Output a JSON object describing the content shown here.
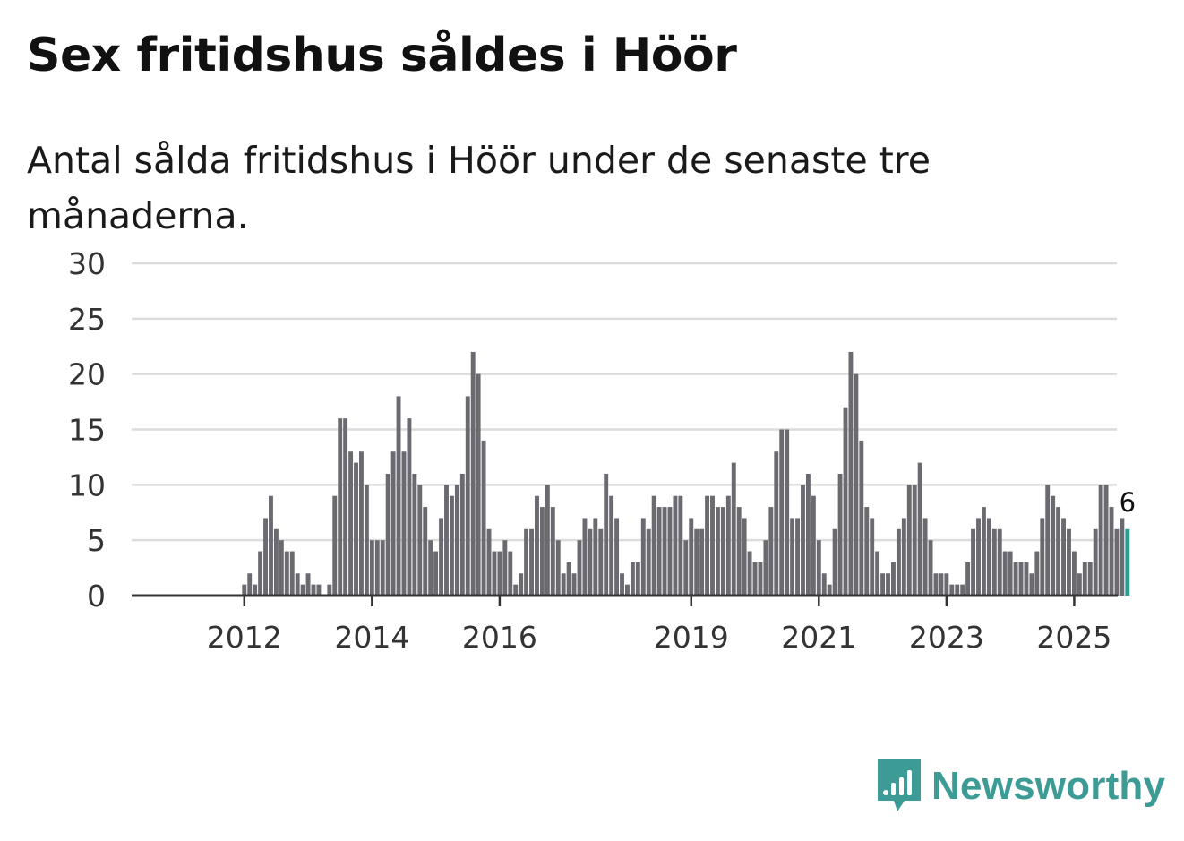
{
  "title": "Sex fritidshus såldes i Höör",
  "subtitle": "Antal sålda fritidshus i Höör under de senaste tre månaderna.",
  "brand": {
    "name": "Newsworthy",
    "color": "#3d9b95",
    "icon": "newsworthy-logo-icon"
  },
  "chart_data": {
    "type": "bar",
    "title": "Sex fritidshus såldes i Höör",
    "subtitle": "Antal sålda fritidshus i Höör under de senaste tre månaderna.",
    "xlabel": "",
    "ylabel": "",
    "ylim": [
      0,
      30
    ],
    "yticks": [
      0,
      5,
      10,
      15,
      20,
      25,
      30
    ],
    "grid": true,
    "legend": "none",
    "x_start": "2011-01",
    "frequency": "monthly",
    "xtick_labels": [
      {
        "label": "2012",
        "index": 12
      },
      {
        "label": "2014",
        "index": 36
      },
      {
        "label": "2016",
        "index": 60
      },
      {
        "label": "2019",
        "index": 96
      },
      {
        "label": "2021",
        "index": 120
      },
      {
        "label": "2023",
        "index": 144
      },
      {
        "label": "2025",
        "index": 168
      }
    ],
    "bar_color": "#6b6a70",
    "highlight_color": "#2a9d92",
    "highlight_label": "6",
    "values": [
      0,
      0,
      0,
      0,
      0,
      0,
      0,
      0,
      0,
      0,
      0,
      0,
      1,
      2,
      1,
      4,
      7,
      9,
      6,
      5,
      4,
      4,
      2,
      1,
      2,
      1,
      1,
      0,
      1,
      9,
      16,
      16,
      13,
      12,
      13,
      10,
      5,
      5,
      5,
      11,
      13,
      18,
      13,
      16,
      11,
      10,
      8,
      5,
      4,
      7,
      10,
      9,
      10,
      11,
      18,
      22,
      20,
      14,
      6,
      4,
      4,
      5,
      4,
      1,
      2,
      6,
      6,
      9,
      8,
      10,
      8,
      5,
      2,
      3,
      2,
      5,
      7,
      6,
      7,
      6,
      11,
      9,
      7,
      2,
      1,
      3,
      3,
      7,
      6,
      9,
      8,
      8,
      8,
      9,
      9,
      5,
      7,
      6,
      6,
      9,
      9,
      8,
      8,
      9,
      12,
      8,
      7,
      4,
      3,
      3,
      5,
      8,
      13,
      15,
      15,
      7,
      7,
      10,
      11,
      9,
      5,
      2,
      1,
      6,
      11,
      17,
      22,
      20,
      14,
      8,
      7,
      4,
      2,
      2,
      3,
      6,
      7,
      10,
      10,
      12,
      7,
      5,
      2,
      2,
      2,
      1,
      1,
      1,
      3,
      6,
      7,
      8,
      7,
      6,
      6,
      4,
      4,
      3,
      3,
      3,
      2,
      4,
      7,
      10,
      9,
      8,
      7,
      6,
      4,
      2,
      3,
      3,
      6,
      10,
      10,
      8,
      6,
      7,
      6
    ]
  }
}
